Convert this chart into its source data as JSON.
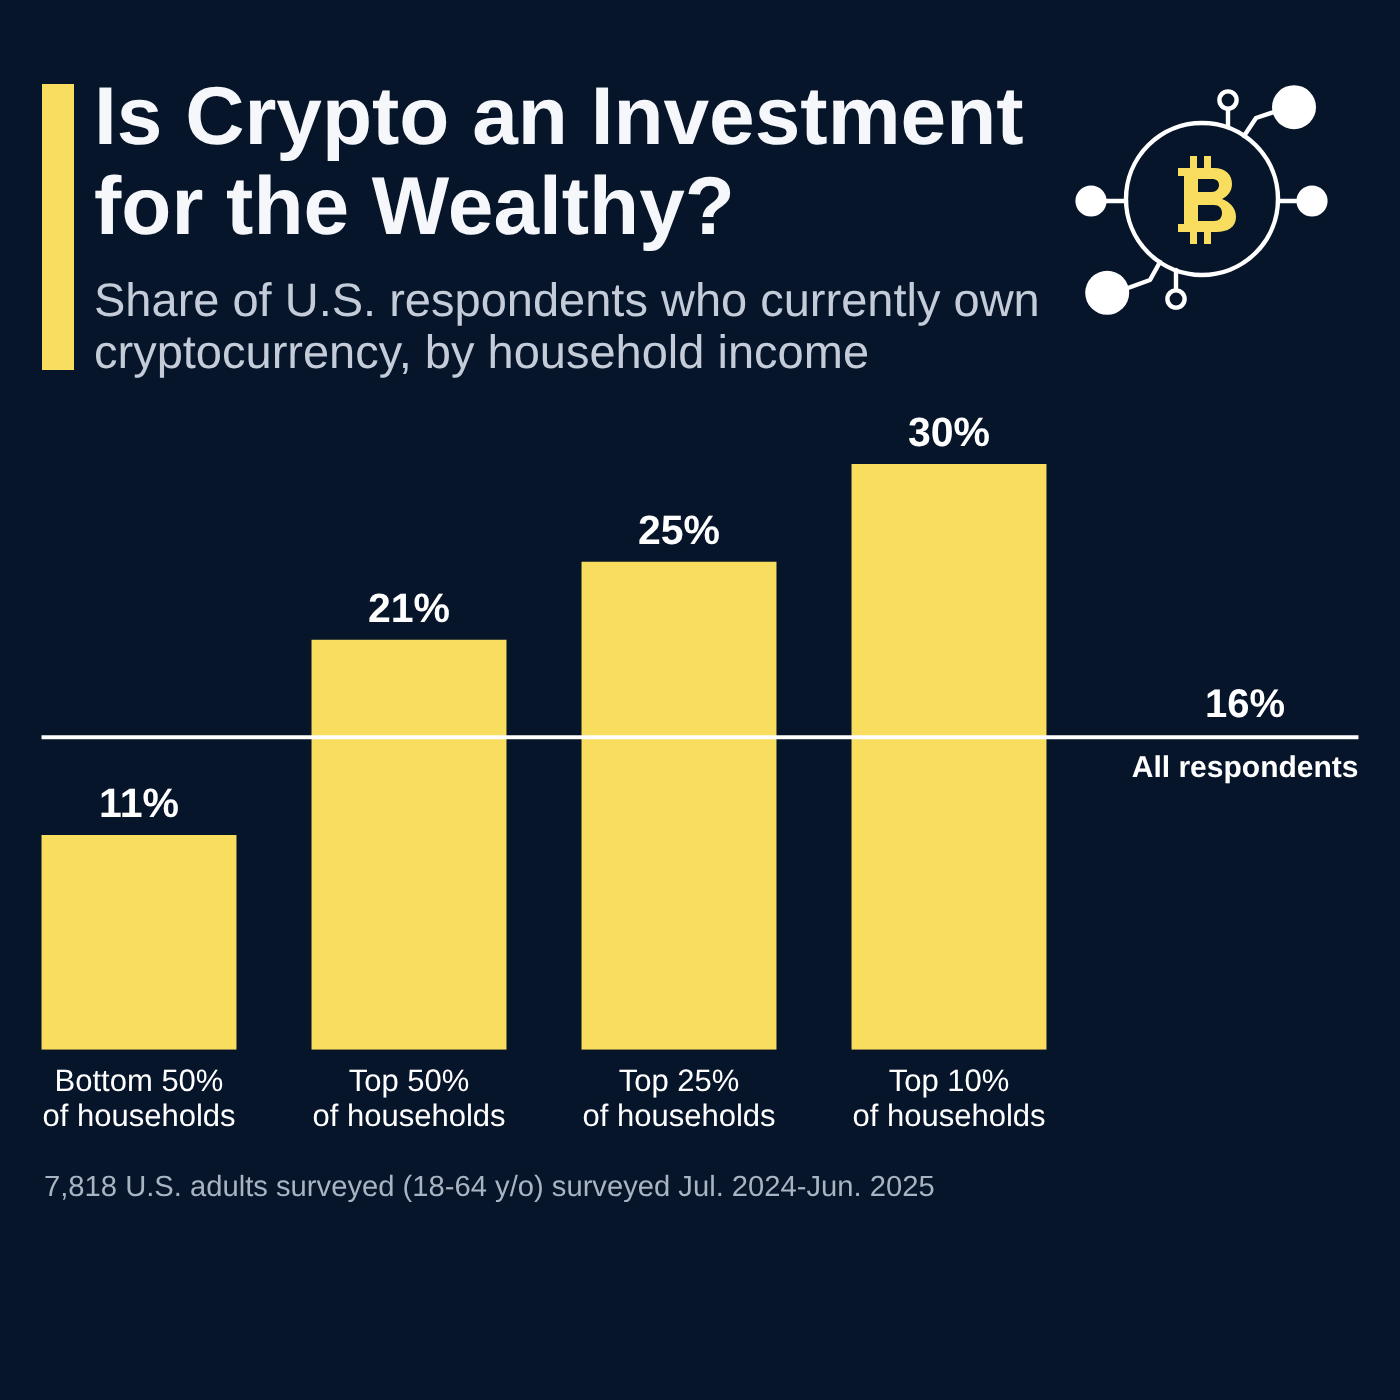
{
  "chart_data": {
    "type": "bar",
    "title": "Is Crypto an Investment for the Wealthy?",
    "subtitle": "Share of U.S. respondents who currently own cryptocurrency, by household income",
    "categories": [
      "Bottom 50%\nof households",
      "Top 50%\nof households",
      "Top 25%\nof households",
      "Top 10%\nof households"
    ],
    "values": [
      11,
      21,
      25,
      30
    ],
    "value_labels": [
      "11%",
      "21%",
      "25%",
      "30%"
    ],
    "color": "#f9dd5e",
    "tick_labels": "x",
    "ref_lines": [
      {
        "axis": "y",
        "value": 16,
        "label": "All respondents",
        "color": "#ffffff"
      }
    ],
    "annotations": [
      {
        "text": "16%",
        "y": 16
      },
      "7,818 U.S. adults surveyed (18-64 y/o) surveyed Jul. 2024-Jun. 2025"
    ]
  }
}
